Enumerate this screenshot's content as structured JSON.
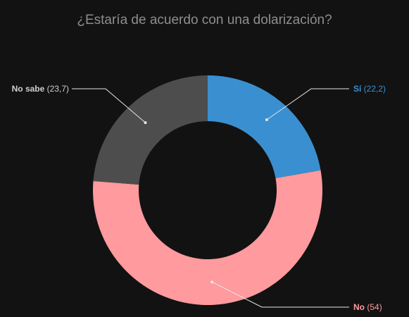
{
  "chart_data": {
    "type": "pie",
    "variant": "donut",
    "title": "¿Estaría de acuerdo con una dolarización?",
    "slices": [
      {
        "name": "Sí",
        "value_label": "(22,2)",
        "value": 22.2,
        "color": "#3a8fd0",
        "label_color": "#3a8fd0",
        "label_side": "right"
      },
      {
        "name": "No",
        "value_label": "(54)",
        "value": 54,
        "color": "#ff9a9e",
        "label_color": "#ff9a9e",
        "label_side": "right"
      },
      {
        "name": "No sabe",
        "value_label": "(23,7)",
        "value": 23.7,
        "color": "#4d4d4d",
        "label_color": "#cfcfcf",
        "label_side": "left"
      }
    ],
    "start": "top",
    "direction": "clockwise",
    "legend": "none"
  },
  "colors": {
    "background": "#121212",
    "title": "#8e8e8e",
    "leader_line": "#e6e6e6"
  }
}
